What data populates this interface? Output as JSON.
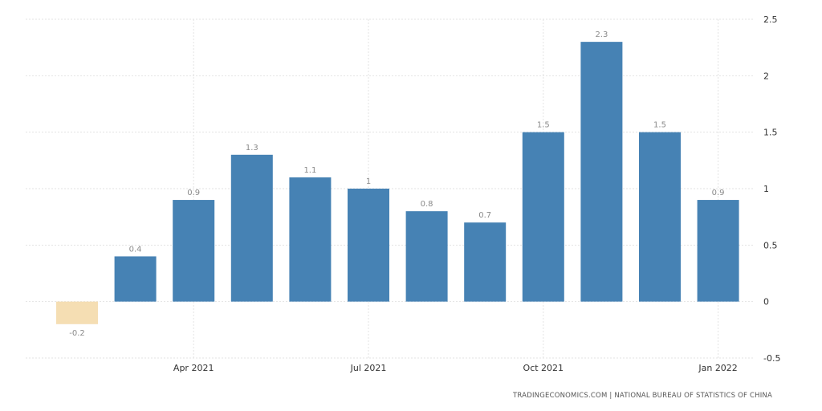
{
  "chart_data": {
    "type": "bar",
    "categories": [
      "2021-02",
      "2021-03",
      "2021-04",
      "2021-05",
      "2021-06",
      "2021-07",
      "2021-08",
      "2021-09",
      "2021-10",
      "2021-11",
      "2021-12",
      "2022-01"
    ],
    "values": [
      -0.2,
      0.4,
      0.9,
      1.3,
      1.1,
      1,
      0.8,
      0.7,
      1.5,
      2.3,
      1.5,
      0.9
    ],
    "data_labels": [
      "-0.2",
      "0.4",
      "0.9",
      "1.3",
      "1.1",
      "1",
      "0.8",
      "0.7",
      "1.5",
      "2.3",
      "1.5",
      "0.9"
    ],
    "x_tick_labels": [
      {
        "category": "2021-04",
        "label": "Apr 2021"
      },
      {
        "category": "2021-07",
        "label": "Jul 2021"
      },
      {
        "category": "2021-10",
        "label": "Oct 2021"
      },
      {
        "category": "2022-01",
        "label": "Jan 2022"
      }
    ],
    "y_ticks": [
      2.5,
      2,
      1.5,
      1,
      0.5,
      0,
      -0.5
    ],
    "y_tick_labels": [
      "2.5",
      "2",
      "1.5",
      "1",
      "0.5",
      "0",
      "-0.5"
    ],
    "ylim": [
      -0.5,
      2.5
    ],
    "y_axis_side": "right",
    "grid": true,
    "title": "",
    "xlabel": "",
    "ylabel": "",
    "colors": {
      "positive": "#4682b4",
      "negative": "#f5deb3"
    }
  },
  "source": "TRADINGECONOMICS.COM | NATIONAL BUREAU OF STATISTICS OF CHINA"
}
